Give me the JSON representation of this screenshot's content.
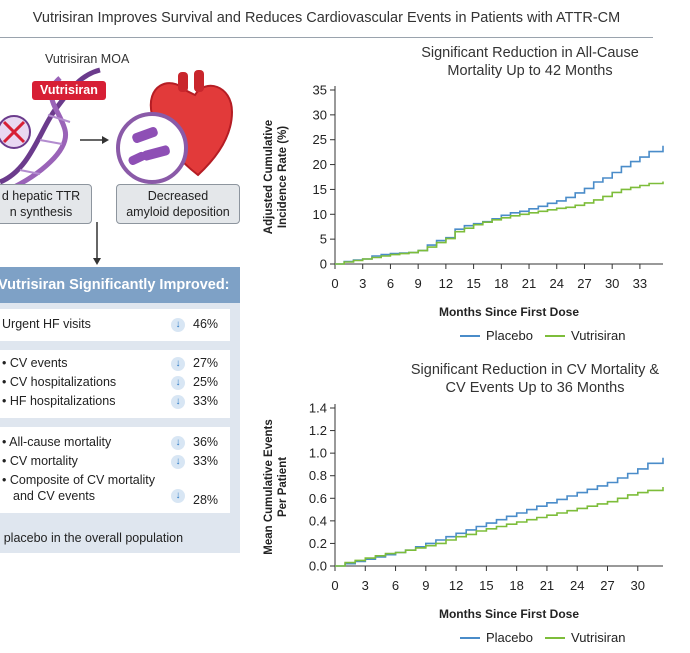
{
  "header": {
    "title": "Vutrisiran Improves Survival and Reduces Cardiovascular Events in Patients with ATTR-CM"
  },
  "moa": {
    "label": "Vutrisiran MOA",
    "drug_tag": "Vutrisiran",
    "caption_left_1": "d hepatic TTR",
    "caption_left_2": "n synthesis",
    "caption_right_1": "Decreased",
    "caption_right_2": "amyloid deposition"
  },
  "results": {
    "heading": "Vutrisiran Significantly Improved:",
    "groups": [
      {
        "items": [
          {
            "label": "Urgent HF visits",
            "value": "46%"
          }
        ]
      },
      {
        "items": [
          {
            "label": "• CV events",
            "value": "27%"
          },
          {
            "label": "• CV hospitalizations",
            "value": "25%"
          },
          {
            "label": "• HF hospitalizations",
            "value": "33%"
          }
        ]
      },
      {
        "items": [
          {
            "label": "• All-cause mortality",
            "value": "36%"
          },
          {
            "label": "• CV mortality",
            "value": "33%"
          },
          {
            "label": "• Composite of CV mortality",
            "label2": "and CV events",
            "value": "28%"
          }
        ]
      }
    ],
    "footnote": "s placebo in the overall population"
  },
  "colors": {
    "placebo": "#4a8cc9",
    "vutrisiran": "#7dbd3a",
    "panel_head": "#7ea1c6",
    "drug_tag": "#d71f35"
  },
  "chart_data": [
    {
      "type": "line",
      "title_line1": "Significant Reduction in All-Cause",
      "title_line2": "Mortality Up to 42 Months",
      "xlabel": "Months Since First Dose",
      "ylabel_line1": "Adjusted Cumulative",
      "ylabel_line2": "Incidence Rate (%)",
      "xticks": [
        0,
        3,
        6,
        9,
        12,
        15,
        18,
        21,
        24,
        27,
        30,
        33
      ],
      "yticks": [
        0,
        5,
        10,
        15,
        20,
        25,
        30,
        35
      ],
      "xlim": [
        0,
        35.5
      ],
      "ylim": [
        0,
        35
      ],
      "series": [
        {
          "name": "Placebo",
          "x": [
            0,
            1,
            2,
            3,
            4,
            5,
            6,
            7,
            8,
            9,
            10,
            11,
            12,
            13,
            14,
            15,
            16,
            17,
            18,
            19,
            20,
            21,
            22,
            23,
            24,
            25,
            26,
            27,
            28,
            29,
            30,
            31,
            32,
            33,
            34,
            35.5
          ],
          "y": [
            0,
            0.5,
            0.8,
            1.0,
            1.6,
            1.9,
            2.1,
            2.2,
            2.3,
            2.7,
            3.8,
            4.7,
            5.3,
            7.0,
            7.7,
            8.1,
            8.5,
            9.1,
            9.8,
            10.3,
            10.6,
            11.1,
            11.6,
            12.2,
            12.7,
            13.4,
            14.3,
            15.2,
            16.5,
            17.3,
            18.4,
            19.6,
            20.6,
            21.5,
            22.6,
            23.8
          ]
        },
        {
          "name": "Vutrisiran",
          "x": [
            0,
            1,
            2,
            3,
            4,
            5,
            6,
            7,
            8,
            9,
            10,
            11,
            12,
            13,
            14,
            15,
            16,
            17,
            18,
            19,
            20,
            21,
            22,
            23,
            24,
            25,
            26,
            27,
            28,
            29,
            30,
            31,
            32,
            33,
            34,
            35.5
          ],
          "y": [
            0,
            0.4,
            0.7,
            1.0,
            1.3,
            1.6,
            1.9,
            2.1,
            2.3,
            2.7,
            3.4,
            4.3,
            5.1,
            6.5,
            7.2,
            7.9,
            8.4,
            8.9,
            9.3,
            9.7,
            10.0,
            10.3,
            10.6,
            10.9,
            11.2,
            11.4,
            11.8,
            12.3,
            12.9,
            13.6,
            14.4,
            15.0,
            15.4,
            15.8,
            16.2,
            16.6
          ]
        }
      ],
      "legend": [
        "Placebo",
        "Vutrisiran"
      ]
    },
    {
      "type": "line",
      "title_line1": "Significant Reduction in CV Mortality &",
      "title_line2": "CV Events Up to 36 Months",
      "xlabel": "Months Since First Dose",
      "ylabel_line1": "Mean Cumulative Events",
      "ylabel_line2": "Per Patient",
      "xticks": [
        0,
        3,
        6,
        9,
        12,
        15,
        18,
        21,
        24,
        27,
        30
      ],
      "yticks": [
        0.0,
        0.2,
        0.4,
        0.6,
        0.8,
        1.0,
        1.2,
        1.4
      ],
      "ytick_labels": [
        "0.0",
        "0.2",
        "0.4",
        "0.6",
        "0.8",
        "1.0",
        "1.2",
        "1.4"
      ],
      "xlim": [
        0,
        32.5
      ],
      "ylim": [
        0,
        1.4
      ],
      "series": [
        {
          "name": "Placebo",
          "x": [
            0,
            1,
            2,
            3,
            4,
            5,
            6,
            7,
            8,
            9,
            10,
            11,
            12,
            13,
            14,
            15,
            16,
            17,
            18,
            19,
            20,
            21,
            22,
            23,
            24,
            25,
            26,
            27,
            28,
            29,
            30,
            31,
            32.5
          ],
          "y": [
            0,
            0.02,
            0.04,
            0.06,
            0.08,
            0.1,
            0.12,
            0.14,
            0.17,
            0.2,
            0.23,
            0.26,
            0.29,
            0.32,
            0.35,
            0.38,
            0.41,
            0.44,
            0.47,
            0.5,
            0.53,
            0.56,
            0.59,
            0.62,
            0.65,
            0.68,
            0.71,
            0.74,
            0.78,
            0.82,
            0.86,
            0.91,
            0.96
          ]
        },
        {
          "name": "Vutrisiran",
          "x": [
            0,
            1,
            2,
            3,
            4,
            5,
            6,
            7,
            8,
            9,
            10,
            11,
            12,
            13,
            14,
            15,
            16,
            17,
            18,
            19,
            20,
            21,
            22,
            23,
            24,
            25,
            26,
            27,
            28,
            29,
            30,
            31,
            32.5
          ],
          "y": [
            0,
            0.03,
            0.05,
            0.07,
            0.09,
            0.11,
            0.12,
            0.14,
            0.16,
            0.18,
            0.2,
            0.23,
            0.26,
            0.28,
            0.31,
            0.33,
            0.35,
            0.37,
            0.39,
            0.41,
            0.43,
            0.45,
            0.47,
            0.49,
            0.51,
            0.53,
            0.55,
            0.57,
            0.6,
            0.63,
            0.65,
            0.67,
            0.7
          ]
        }
      ],
      "legend": [
        "Placebo",
        "Vutrisiran"
      ]
    }
  ]
}
